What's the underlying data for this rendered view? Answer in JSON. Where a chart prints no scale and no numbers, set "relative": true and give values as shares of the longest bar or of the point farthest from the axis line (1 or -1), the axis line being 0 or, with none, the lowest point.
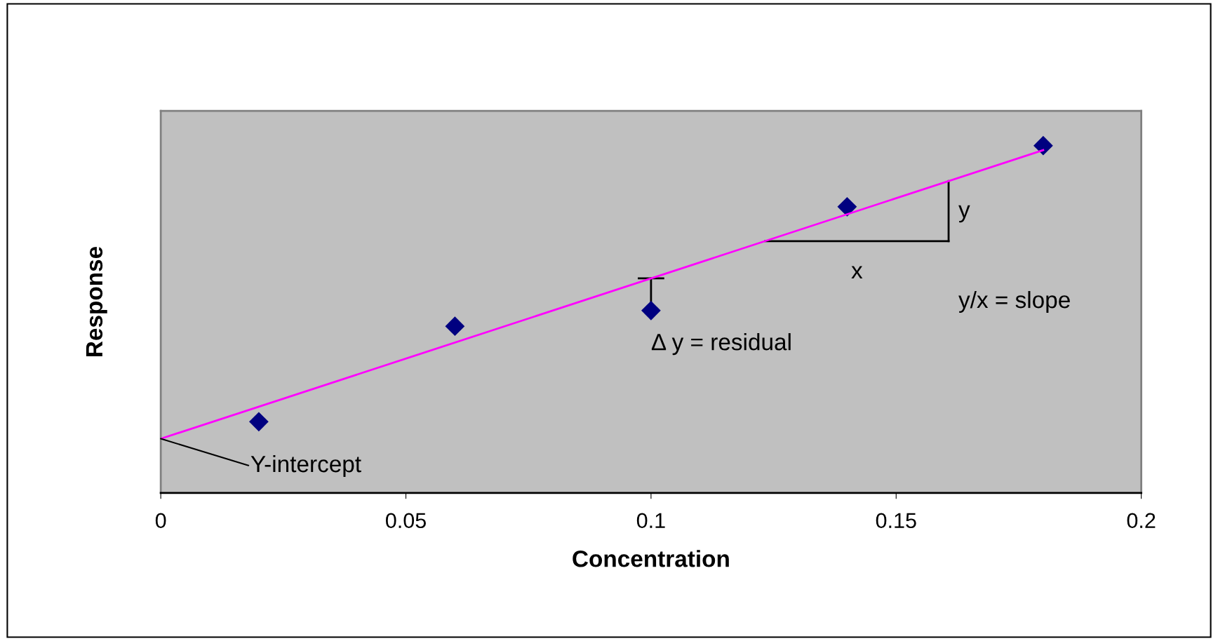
{
  "chart_data": {
    "type": "scatter",
    "xlabel": "Concentration",
    "ylabel": "Response",
    "relative": true,
    "xlim": [
      0,
      0.2
    ],
    "xticks": [
      0,
      0.05,
      0.1,
      0.15,
      0.2
    ],
    "grid": false,
    "marker": "diamond",
    "tick_labels": "x",
    "x": [
      0.02,
      0.06,
      0.1,
      0.14,
      0.18
    ],
    "series": [
      {
        "color": "#000080",
        "values": [
          0.205,
          0.48,
          0.525,
          0.824,
          1
        ]
      },
      {
        "type": "line",
        "color": "#ff00ff",
        "x": [
          0,
          0.18
        ],
        "values": [
          0.156,
          0.987
        ],
        "marker": "none",
        "line_style": "solid"
      }
    ],
    "annotations": [
      {
        "text": "Y-intercept",
        "x": 0,
        "y": 0.156
      },
      {
        "text": "Δ y = residual",
        "x": 0.1,
        "y": 0.525
      },
      "y",
      "x",
      "y/x = slope"
    ]
  }
}
